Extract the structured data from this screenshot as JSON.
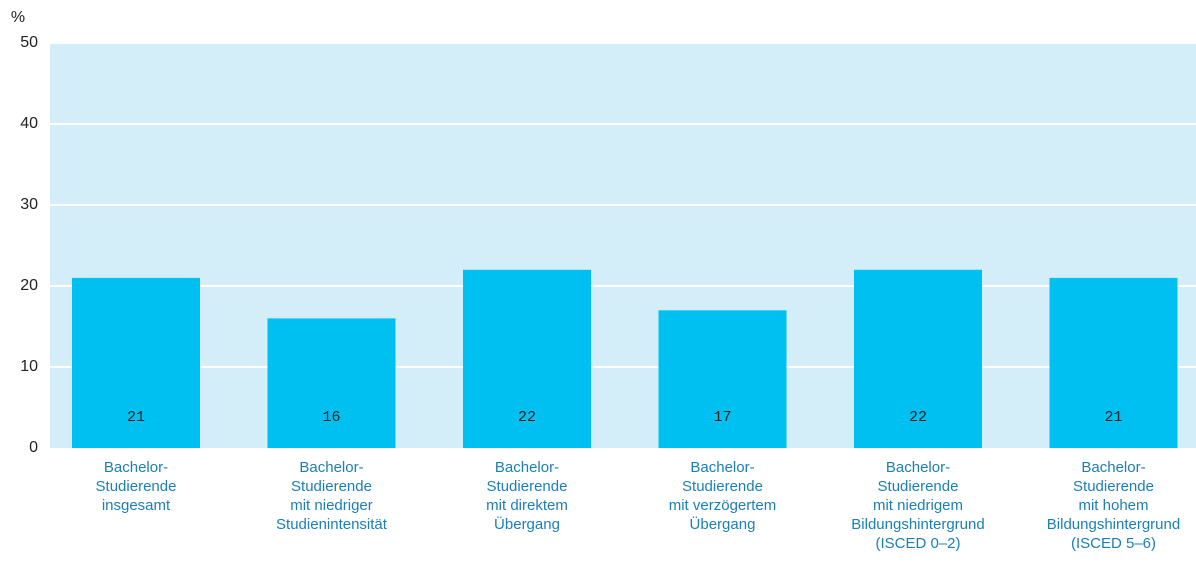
{
  "chart_data": {
    "type": "bar",
    "y_label": "%",
    "categories": [
      [
        "Bachelor-",
        "Studierende",
        "insgesamt"
      ],
      [
        "Bachelor-",
        "Studierende",
        "mit niedriger",
        "Studienintensität"
      ],
      [
        "Bachelor-",
        "Studierende",
        "mit direktem",
        "Übergang"
      ],
      [
        "Bachelor-",
        "Studierende",
        "mit verzögertem",
        "Übergang"
      ],
      [
        "Bachelor-",
        "Studierende",
        "mit niedrigem",
        "Bildungshintergrund",
        "(ISCED 0–2)"
      ],
      [
        "Bachelor-",
        "Studierende",
        "mit hohem",
        "Bildungshintergrund",
        "(ISCED 5–6)"
      ]
    ],
    "values": [
      21,
      16,
      22,
      17,
      22,
      21
    ],
    "color": "#00c0f2",
    "ylim": [
      0,
      50
    ],
    "yticks": [
      0,
      10,
      20,
      30,
      40,
      50
    ],
    "grid": true
  }
}
